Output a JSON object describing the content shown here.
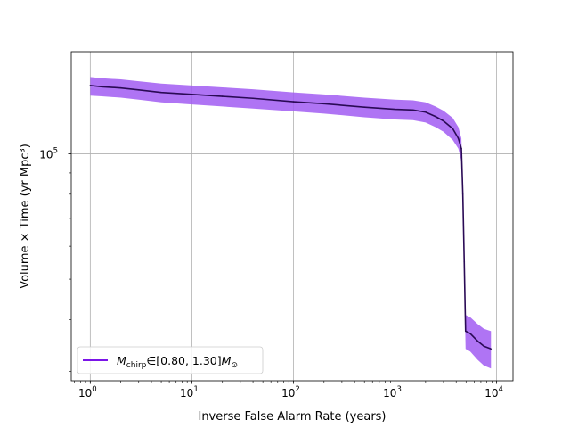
{
  "chart_data": {
    "type": "line",
    "title": "",
    "xlabel": "Inverse False Alarm Rate (years)",
    "ylabel": "Volume × Time (yr Mpc³)",
    "xscale": "log",
    "yscale": "log",
    "xlim": [
      0.65,
      14500
    ],
    "ylim": [
      28500,
      176000
    ],
    "grid": true,
    "legend_placement": "lower-left",
    "xticks": [
      {
        "value": 1,
        "base": "10",
        "exp": "0"
      },
      {
        "value": 10,
        "base": "10",
        "exp": "1"
      },
      {
        "value": 100,
        "base": "10",
        "exp": "2"
      },
      {
        "value": 1000,
        "base": "10",
        "exp": "3"
      },
      {
        "value": 10000,
        "base": "10",
        "exp": "4"
      }
    ],
    "yticks": [
      {
        "value": 100000,
        "base": "10",
        "exp": "5"
      }
    ],
    "series": [
      {
        "name": "M_chirp ∈ [0.80, 1.30] M⊙",
        "legend": {
          "symbol": "M",
          "subscript": "chirp",
          "range": "∈[0.80, 1.30]",
          "unit": "M",
          "unit_sub": "⊙"
        },
        "color": "#7b14e8",
        "band_color": "#a15cf2",
        "line_color": "#2a0a55",
        "points": [
          {
            "x": 1.0,
            "y": 146000,
            "lo": 138000,
            "hi": 153000
          },
          {
            "x": 1.3,
            "y": 145000,
            "lo": 137500,
            "hi": 152000
          },
          {
            "x": 2.0,
            "y": 144000,
            "lo": 136500,
            "hi": 151000
          },
          {
            "x": 3.0,
            "y": 142500,
            "lo": 135000,
            "hi": 149500
          },
          {
            "x": 5.0,
            "y": 140500,
            "lo": 133000,
            "hi": 147500
          },
          {
            "x": 10,
            "y": 139000,
            "lo": 131500,
            "hi": 146000
          },
          {
            "x": 20,
            "y": 137500,
            "lo": 130000,
            "hi": 144500
          },
          {
            "x": 40,
            "y": 136000,
            "lo": 128500,
            "hi": 143000
          },
          {
            "x": 100,
            "y": 133500,
            "lo": 126500,
            "hi": 140500
          },
          {
            "x": 200,
            "y": 132000,
            "lo": 125000,
            "hi": 139000
          },
          {
            "x": 500,
            "y": 129500,
            "lo": 122500,
            "hi": 136500
          },
          {
            "x": 1000,
            "y": 128000,
            "lo": 121000,
            "hi": 135000
          },
          {
            "x": 1500,
            "y": 127500,
            "lo": 120500,
            "hi": 134500
          },
          {
            "x": 2000,
            "y": 126000,
            "lo": 119000,
            "hi": 133000
          },
          {
            "x": 2500,
            "y": 123000,
            "lo": 116000,
            "hi": 130000
          },
          {
            "x": 3000,
            "y": 120000,
            "lo": 113000,
            "hi": 127000
          },
          {
            "x": 3700,
            "y": 115000,
            "lo": 108000,
            "hi": 122000
          },
          {
            "x": 4200,
            "y": 109000,
            "lo": 103000,
            "hi": 116000
          },
          {
            "x": 4500,
            "y": 103000,
            "lo": 96000,
            "hi": 109000
          },
          {
            "x": 4650,
            "y": 80000,
            "lo": 74000,
            "hi": 86000
          },
          {
            "x": 4800,
            "y": 55000,
            "lo": 50000,
            "hi": 60000
          },
          {
            "x": 4950,
            "y": 37500,
            "lo": 34000,
            "hi": 41000
          },
          {
            "x": 5500,
            "y": 37000,
            "lo": 33500,
            "hi": 40500
          },
          {
            "x": 6500,
            "y": 35500,
            "lo": 32000,
            "hi": 39000
          },
          {
            "x": 7500,
            "y": 34500,
            "lo": 31000,
            "hi": 38000
          },
          {
            "x": 8800,
            "y": 34000,
            "lo": 30500,
            "hi": 37500
          }
        ]
      }
    ]
  }
}
